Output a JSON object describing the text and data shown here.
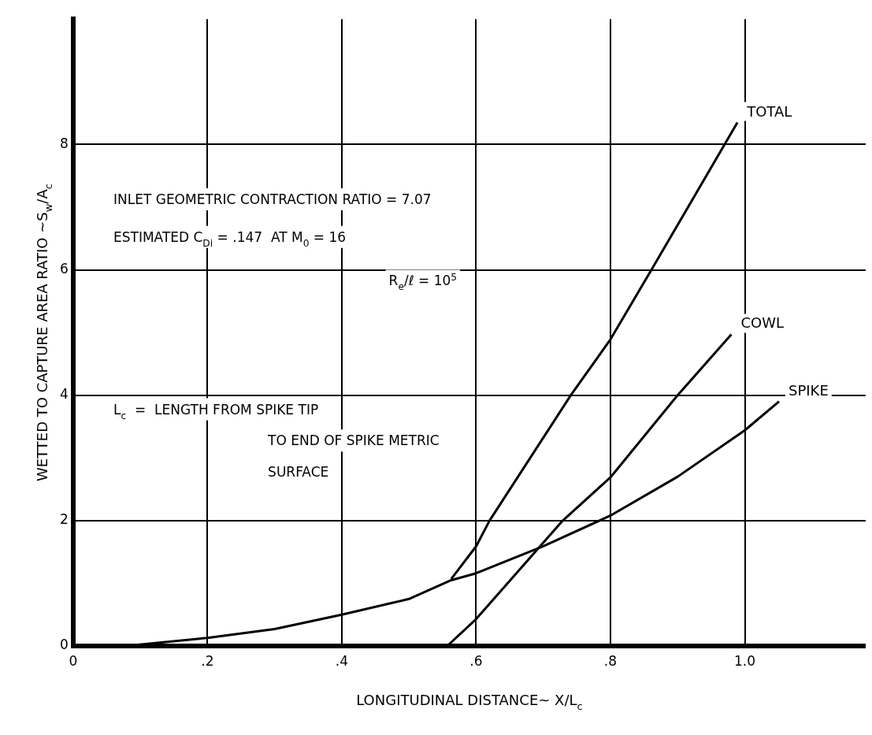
{
  "chart_data": {
    "type": "line",
    "xlabel": "LONGITUDINAL DISTANCE~ X/L$_{c}$",
    "ylabel": "WETTED TO CAPTURE AREA RATIO ~S$_{w}$/A$_{c}$",
    "series": [
      {
        "name": "TOTAL",
        "color": "#000000",
        "x": [
          0.563,
          0.6,
          0.62,
          0.741,
          0.8,
          0.861,
          0.97,
          0.989
        ],
        "values": [
          1.07,
          1.59,
          2.0,
          4.0,
          4.89,
          6.0,
          8.0,
          8.35
        ]
      },
      {
        "name": "COWL",
        "color": "#000000",
        "x": [
          0.557,
          0.6,
          0.729,
          0.8,
          0.9,
          0.98
        ],
        "values": [
          0,
          0.43,
          2.0,
          2.69,
          4.0,
          4.97
        ]
      },
      {
        "name": "SPIKE",
        "color": "#000000",
        "x": [
          0.078,
          0.2,
          0.3,
          0.4,
          0.5,
          0.563,
          0.6,
          0.7,
          0.8,
          0.9,
          1.0,
          1.051
        ],
        "values": [
          0,
          0.13,
          0.27,
          0.5,
          0.75,
          1.05,
          1.16,
          1.59,
          2.08,
          2.7,
          3.44,
          3.9
        ]
      }
    ],
    "xlim": [
      0,
      1.18
    ],
    "ylim": [
      0,
      10
    ],
    "xticks": [
      {
        "value": 0,
        "label": "0"
      },
      {
        "value": 0.2,
        "label": ".2"
      },
      {
        "value": 0.4,
        "label": ".4"
      },
      {
        "value": 0.6,
        "label": ".6"
      },
      {
        "value": 0.8,
        "label": ".8"
      },
      {
        "value": 1,
        "label": "1.0"
      }
    ],
    "yticks": [
      0,
      2,
      4,
      6,
      8
    ],
    "grid": true,
    "legend": false,
    "marker": "none",
    "line_style": "solid",
    "annotations": [
      "INLET GEOMETRIC CONTRACTION RATIO = 7.07",
      "ESTIMATED C$_{Di}$ = .147  AT M$_{0}$ = 16",
      "R$_{e}$/ℓ = 10$^{5}$",
      "L$_{c}$  =  LENGTH FROM SPIKE TIP",
      "TO END OF SPIKE METRIC",
      "SURFACE"
    ]
  }
}
